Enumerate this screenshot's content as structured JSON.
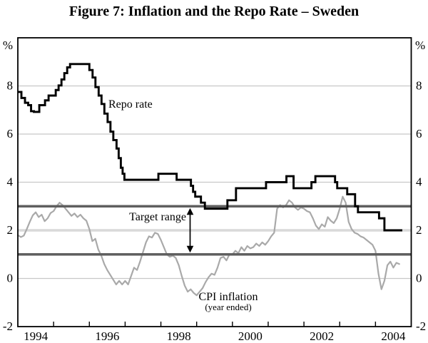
{
  "figure": {
    "title": "Figure 7: Inflation and the Repo Rate – Sweden"
  },
  "chart_data": {
    "type": "line",
    "title": "Figure 7: Inflation and the Repo Rate – Sweden",
    "x_axis": {
      "min": 1994,
      "max": 2005,
      "tick_years": [
        1995,
        1996,
        1997,
        1998,
        1999,
        2000,
        2001,
        2002,
        2003,
        2004
      ],
      "labels": [
        {
          "text": "1994",
          "at": 1994.5
        },
        {
          "text": "1996",
          "at": 1996.5
        },
        {
          "text": "1998",
          "at": 1998.5
        },
        {
          "text": "2000",
          "at": 2000.5
        },
        {
          "text": "2002",
          "at": 2002.5
        },
        {
          "text": "2004",
          "at": 2004.5
        }
      ]
    },
    "y_axis": {
      "min": -2,
      "max": 10,
      "unit": "%",
      "gridline_values": [
        0,
        4,
        6,
        8
      ],
      "midline_value": 2,
      "label_values": [
        -2,
        0,
        2,
        4,
        6,
        8
      ],
      "labels": [
        "-2",
        "0",
        "2",
        "4",
        "6",
        "8"
      ]
    },
    "target_range": {
      "lower": 1,
      "upper": 3,
      "label": "Target range"
    },
    "series": [
      {
        "name": "Repo rate",
        "label": "Repo rate",
        "type": "step",
        "color": "#000000",
        "end_year": 2004.75,
        "points": [
          [
            1994.0,
            7.75
          ],
          [
            1994.1,
            7.5
          ],
          [
            1994.2,
            7.3
          ],
          [
            1994.29,
            7.2
          ],
          [
            1994.37,
            6.95
          ],
          [
            1994.45,
            6.92
          ],
          [
            1994.6,
            7.2
          ],
          [
            1994.76,
            7.4
          ],
          [
            1994.86,
            7.6
          ],
          [
            1995.06,
            7.83
          ],
          [
            1995.14,
            8.02
          ],
          [
            1995.22,
            8.27
          ],
          [
            1995.3,
            8.53
          ],
          [
            1995.38,
            8.77
          ],
          [
            1995.46,
            8.91
          ],
          [
            1996.0,
            8.66
          ],
          [
            1996.09,
            8.35
          ],
          [
            1996.17,
            7.95
          ],
          [
            1996.26,
            7.6
          ],
          [
            1996.34,
            7.25
          ],
          [
            1996.42,
            6.85
          ],
          [
            1996.51,
            6.5
          ],
          [
            1996.59,
            6.1
          ],
          [
            1996.67,
            5.75
          ],
          [
            1996.76,
            5.4
          ],
          [
            1996.82,
            5.0
          ],
          [
            1996.88,
            4.6
          ],
          [
            1996.93,
            4.35
          ],
          [
            1996.98,
            4.1
          ],
          [
            1997.93,
            4.35
          ],
          [
            1998.44,
            4.1
          ],
          [
            1998.84,
            3.85
          ],
          [
            1998.9,
            3.6
          ],
          [
            1998.96,
            3.4
          ],
          [
            1999.12,
            3.15
          ],
          [
            1999.23,
            2.9
          ],
          [
            1999.86,
            3.25
          ],
          [
            2000.1,
            3.75
          ],
          [
            2000.94,
            4.0
          ],
          [
            2001.51,
            4.25
          ],
          [
            2001.71,
            3.75
          ],
          [
            2002.21,
            4.0
          ],
          [
            2002.32,
            4.25
          ],
          [
            2002.87,
            4.0
          ],
          [
            2002.93,
            3.75
          ],
          [
            2003.21,
            3.5
          ],
          [
            2003.43,
            3.0
          ],
          [
            2003.51,
            2.75
          ],
          [
            2004.1,
            2.5
          ],
          [
            2004.25,
            2.0
          ]
        ]
      },
      {
        "name": "CPI inflation",
        "label_line1": "CPI inflation",
        "label_line2": "(year ended)",
        "type": "line",
        "color": "#a9a9a9",
        "start_year": 1994.0,
        "interval": "monthly",
        "values": [
          1.8,
          1.72,
          1.78,
          2.05,
          2.35,
          2.62,
          2.75,
          2.55,
          2.65,
          2.38,
          2.5,
          2.72,
          2.8,
          3.0,
          3.15,
          3.05,
          2.9,
          2.75,
          2.6,
          2.7,
          2.55,
          2.65,
          2.5,
          2.4,
          2.05,
          1.55,
          1.65,
          1.2,
          0.95,
          0.6,
          0.35,
          0.15,
          -0.05,
          -0.25,
          -0.1,
          -0.25,
          -0.1,
          -0.25,
          0.1,
          0.45,
          0.35,
          0.7,
          1.1,
          1.5,
          1.75,
          1.7,
          1.9,
          1.85,
          1.6,
          1.3,
          1.0,
          0.9,
          0.95,
          0.85,
          0.55,
          0.1,
          -0.3,
          -0.55,
          -0.45,
          -0.6,
          -0.7,
          -0.55,
          -0.4,
          -0.15,
          0.05,
          0.2,
          0.15,
          0.45,
          0.85,
          0.9,
          0.75,
          1.0,
          1.0,
          1.15,
          1.05,
          1.3,
          1.15,
          1.35,
          1.25,
          1.3,
          1.45,
          1.35,
          1.5,
          1.4,
          1.55,
          1.75,
          1.9,
          2.9,
          3.05,
          2.95,
          3.05,
          3.25,
          3.15,
          2.95,
          2.85,
          2.95,
          2.9,
          2.8,
          2.75,
          2.5,
          2.2,
          2.05,
          2.25,
          2.15,
          2.55,
          2.4,
          2.3,
          2.5,
          2.9,
          3.4,
          3.15,
          2.35,
          2.05,
          1.9,
          1.85,
          1.75,
          1.7,
          1.6,
          1.5,
          1.4,
          1.15,
          0.2,
          -0.45,
          -0.1,
          0.55,
          0.7,
          0.45,
          0.65,
          0.6
        ]
      }
    ]
  },
  "colors": {
    "axis": "#000000",
    "grid": "#c8c8c8",
    "midline": "#d9d9d9",
    "target": "#5f5f5f",
    "repo": "#000000",
    "cpi": "#a9a9a9",
    "background": "#ffffff"
  }
}
